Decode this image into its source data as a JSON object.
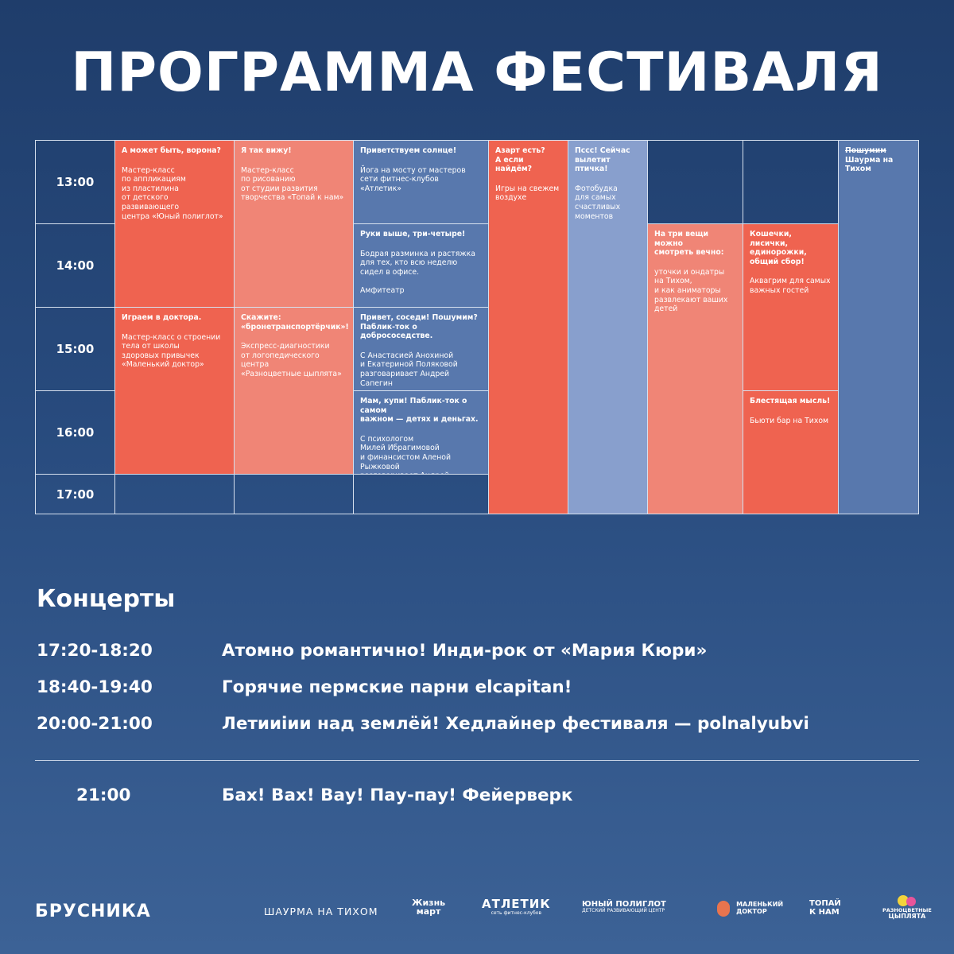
{
  "title": "ПРОГРАММА ФЕСТИВАЛЯ",
  "colors": {
    "red": "#ef6350",
    "salmon": "#f08576",
    "blue": "#5878ad",
    "light_blue": "#889fcd",
    "background": "#284b7e"
  },
  "schedule": {
    "times": [
      "13:00",
      "14:00",
      "15:00",
      "16:00",
      "17:00"
    ],
    "events": {
      "crow": {
        "title": "А может быть, ворона?",
        "body": "Мастер-класс\nпо аппликациям\nиз пластилина\nот детского развивающего\nцентра «Юный полиглот»"
      },
      "seeit": {
        "title": "Я так вижу!",
        "body": "Мастер-класс\nпо рисованию\nот студии развития\nтворчества «Топай к нам»"
      },
      "sun": {
        "title": "Приветствуем солнце!",
        "body": "Йога на мосту от мастеров\nсети фитнес-клубов «Атлетик»"
      },
      "hands": {
        "title": "Руки выше, три-четыре!",
        "body": "Бодрая разминка и растяжка\nдля тех, кто всю неделю\nсидел в офисе.",
        "place": "Амфитеатр"
      },
      "azart": {
        "title": "Азарт есть?\nА если найдём?",
        "body": "Игры на свежем\nвоздухе"
      },
      "bird": {
        "title": "Пссс! Сейчас\nвылетит птичка!",
        "body": "Фотобудка\nдля самых\nсчастливых\nмоментов"
      },
      "shawarma": {
        "title_strike": "Пошумим",
        "body": "Шаурма на Тихом"
      },
      "three": {
        "title": "На три вещи можно\nсмотреть вечно:",
        "body": "уточки и ондатры\nна Тихом,\nи как аниматоры\nразвлекают ваших\nдетей"
      },
      "cats": {
        "title": "Кошечки, лисички,\nединорожки,\nобщий сбор!",
        "body": "Аквагрим для самых\nважных гостей"
      },
      "doctor": {
        "title": "Играем в доктора.",
        "body": "Мастер-класс о строении\nтела от школы\nздоровых привычек\n«Маленький доктор»"
      },
      "armored": {
        "title": "Скажите:\n«бронетранспортёрчик»!",
        "body": "Экспресс-диагностики\nот логопедического центра\n«Разноцветные цыплята»"
      },
      "neighbors": {
        "title": "Привет, соседи! Пошумим?\nПаблик-ток о добрососедстве.",
        "body": "С Анастасией Анохиной\nи Екатериной Поляковой\nразговаривает Андрей Сапегин"
      },
      "mom": {
        "title": "Мам, купи! Паблик-ток о самом\nважном — детях и деньгах.",
        "body": "С психологом\nМилей Ибрагимовой\nи финансистом Аленой Рыжковой\nразговаривает Андрей Сапегин"
      },
      "bright": {
        "title": "Блестящая мысль!",
        "body": "Бьюти бар на Тихом"
      }
    }
  },
  "concerts": {
    "heading": "Концерты",
    "items": [
      {
        "time": "17:20-18:20",
        "desc": "Атомно романтично! Инди-рок от «Мария Кюри»"
      },
      {
        "time": "18:40-19:40",
        "desc": "Горячие пермские парни elcapitan!"
      },
      {
        "time": "20:00-21:00",
        "desc": "Летииiии над землёй! Хедлайнер фестиваля — polnalyubvi"
      }
    ],
    "finale": {
      "time": "21:00",
      "desc": "Бах! Вах! Вау! Пау-пау! Фейерверк"
    }
  },
  "logos": {
    "brusnika": "БРУСНИКА",
    "shawarma": "ШАУРМА НА ТИХОМ",
    "zhizn_mart": [
      "Жизнь",
      "март"
    ],
    "atletik": [
      "АТЛЕТИК",
      "сеть фитнес-клубов"
    ],
    "polyglot": [
      "ЮНЫЙ ПОЛИГЛОТ",
      "ДЕТСКИЙ РАЗВИВАЮЩИЙ ЦЕНТР"
    ],
    "doctor": [
      "МАЛЕНЬКИЙ",
      "ДОКТОР"
    ],
    "topai": [
      "ТОПАЙ",
      "К НАМ"
    ],
    "chicks": [
      "РАЗНОЦВЕТНЫЕ",
      "ЦЫПЛЯТА"
    ]
  }
}
